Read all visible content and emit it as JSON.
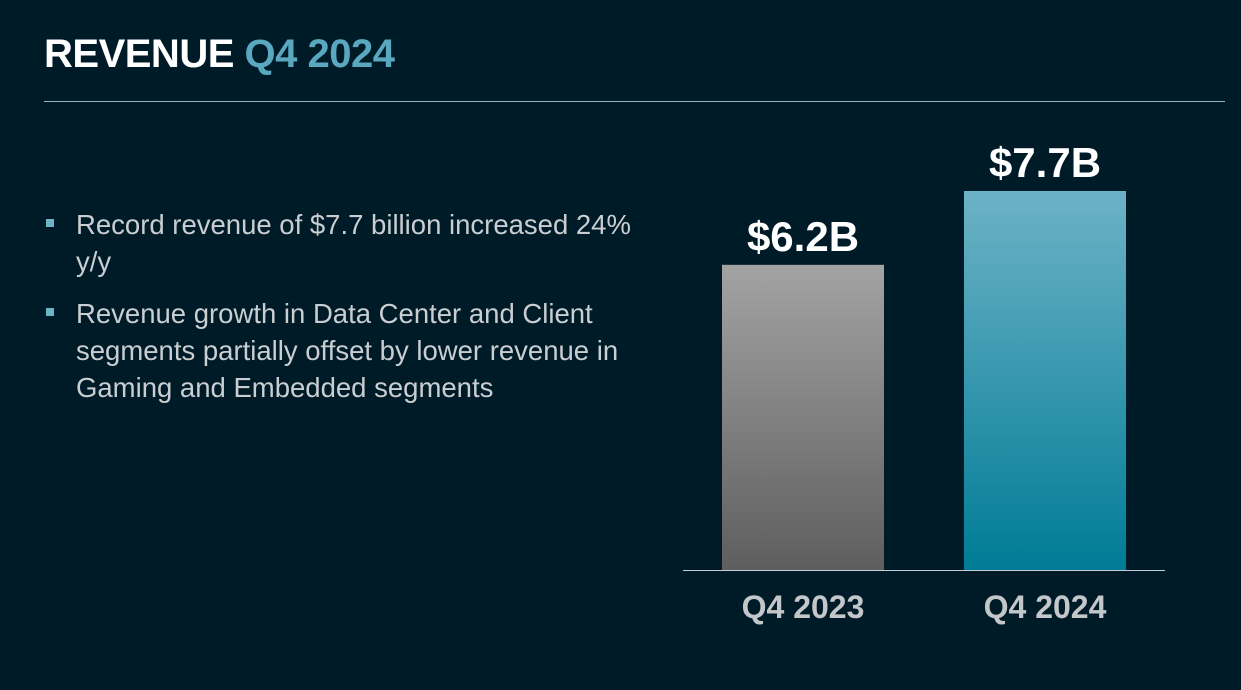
{
  "slide": {
    "title_main": "REVENUE",
    "title_accent": "Q4 2024",
    "bullets": [
      "Record revenue of $7.7 billion increased 24% y/y",
      "Revenue growth in Data Center and Client segments partially offset by lower revenue in Gaming and Embedded segments"
    ]
  },
  "colors": {
    "background": "#001b28",
    "title_accent": "#5aa8c0",
    "bar_prior_top": "#a3a3a3",
    "bar_prior_bottom": "#5e5e5e",
    "bar_current_top": "#6db2c6",
    "bar_current_bottom": "#007c96"
  },
  "chart_data": {
    "type": "bar",
    "categories": [
      "Q4 2023",
      "Q4 2024"
    ],
    "values": [
      6.2,
      7.7
    ],
    "data_labels": [
      "$6.2B",
      "$7.7B"
    ],
    "title": "",
    "xlabel": "",
    "ylabel": "",
    "ylim": [
      0,
      7.7
    ],
    "grid": false,
    "legend": "none"
  }
}
